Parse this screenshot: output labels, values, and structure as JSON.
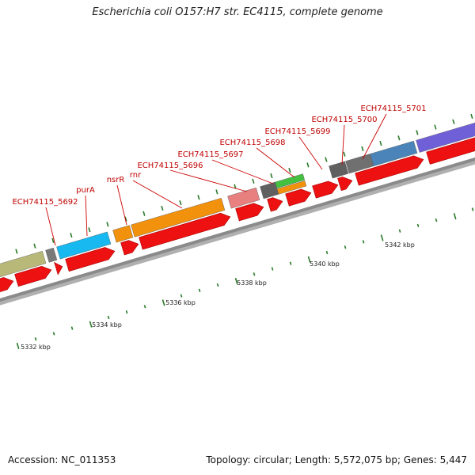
{
  "title": "Escherichia coli O157:H7 str. EC4115, complete genome",
  "footer": {
    "accession": "Accession: NC_011353",
    "summary": "Topology: circular; Length: 5,572,075 bp; Genes: 5,447"
  },
  "colors": {
    "backbone": "#8a8a8a",
    "cds": "#ee1111",
    "label": "#cc0000",
    "tick": "#2a7a2a"
  },
  "ruler": {
    "labels": [
      "5332 kbp",
      "5334 kbp",
      "5336 kbp",
      "5338 kbp",
      "5340 kbp",
      "5342 kbp"
    ]
  },
  "genes": [
    {
      "name": "ECH74115_5692",
      "color": "#b8b878"
    },
    {
      "name": "purA",
      "color": "#18b8f0"
    },
    {
      "name": "nsrR",
      "color": "#f2920c"
    },
    {
      "name": "rnr",
      "color": "#f2920c"
    },
    {
      "name": "ECH74115_5696",
      "color": "#e88080"
    },
    {
      "name": "ECH74115_5697",
      "color": "#606060"
    },
    {
      "name": "ECH74115_5698",
      "color": "#44c040"
    },
    {
      "name": "ECH74115_5699",
      "color": "#606060"
    },
    {
      "name": "ECH74115_5700",
      "color": "#707070"
    },
    {
      "name": "ECH74115_5701",
      "color": "#4a84b8"
    },
    {
      "name": "",
      "color": "#7060d8"
    }
  ]
}
